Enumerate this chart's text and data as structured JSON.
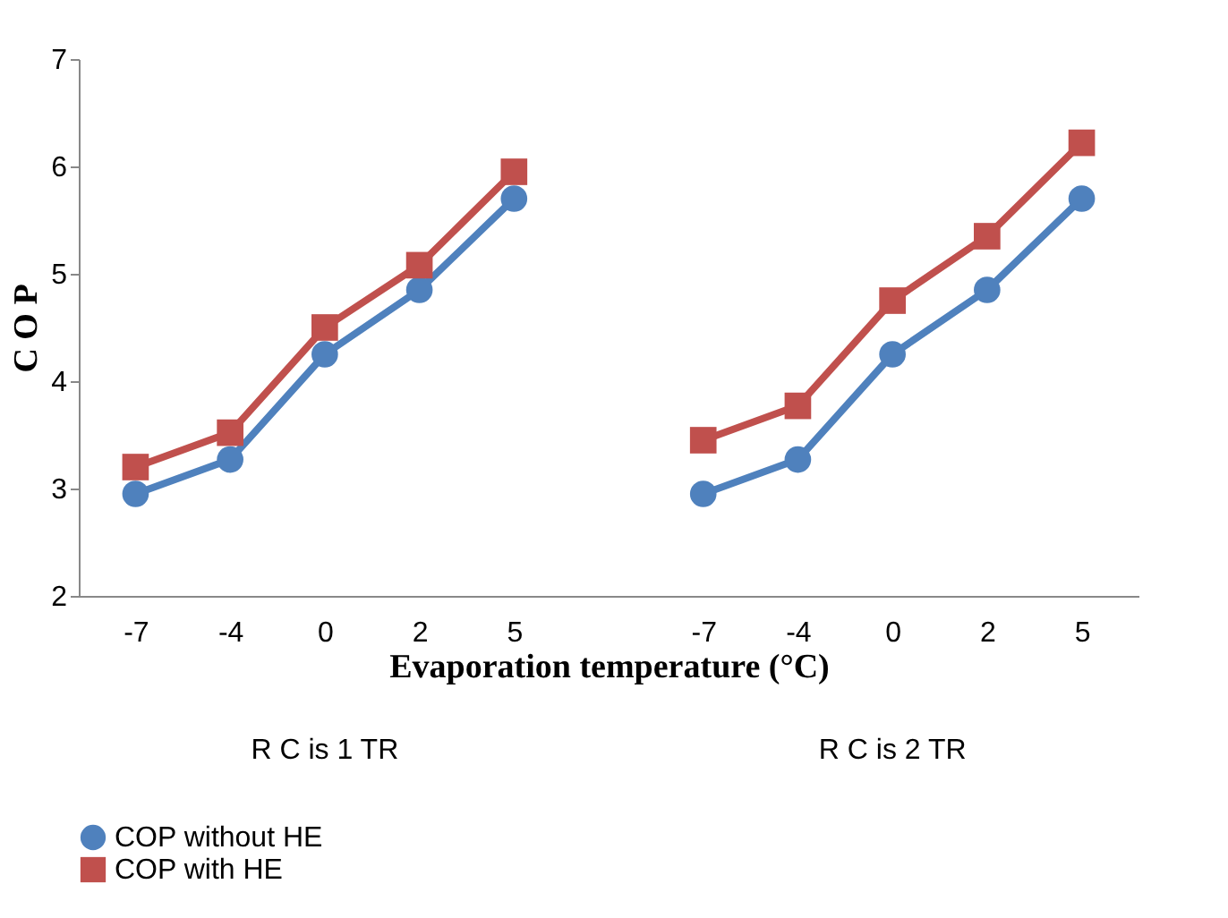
{
  "chart_data": {
    "type": "line",
    "xlabel": "Evaporation temperature (°C)",
    "ylabel": "C O P",
    "categories": [
      "-7",
      "-4",
      "0",
      "2",
      "5",
      null,
      "-7",
      "-4",
      "0",
      "2",
      "5"
    ],
    "series": [
      {
        "name": "COP without  HE",
        "color": "#4f81bd",
        "marker": "circle",
        "values": [
          2.95,
          3.27,
          4.25,
          4.85,
          5.7,
          null,
          2.95,
          3.27,
          4.25,
          4.85,
          5.7
        ]
      },
      {
        "name": "COP with HE",
        "color": "#c0504d",
        "marker": "square",
        "values": [
          3.2,
          3.52,
          4.5,
          5.08,
          5.95,
          null,
          3.45,
          3.77,
          4.75,
          5.35,
          6.22
        ]
      }
    ],
    "ylim": [
      2,
      7
    ],
    "yticks": [
      2,
      3,
      4,
      5,
      6,
      7
    ],
    "grid": false,
    "legend": "bottom left",
    "annotations": [
      "R C is 1 TR",
      "R C is 2 TR"
    ]
  }
}
